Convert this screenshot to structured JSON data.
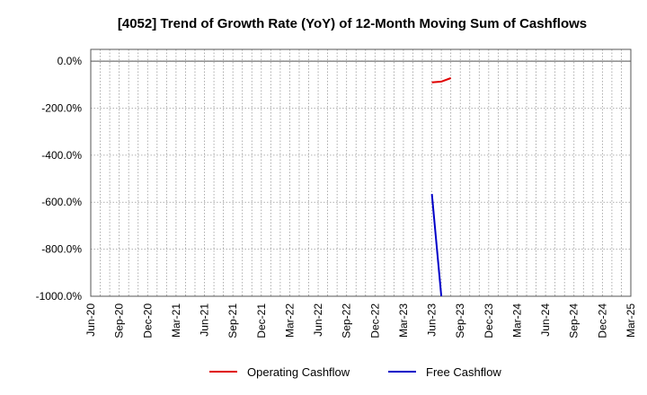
{
  "chart_data": {
    "type": "line",
    "title": "[4052]  Trend of Growth Rate (YoY) of 12-Month Moving Sum of Cashflows",
    "xlabel": "",
    "ylabel": "",
    "ylim": [
      -1000,
      50
    ],
    "y_ticks": [
      0,
      -200,
      -400,
      -600,
      -800,
      -1000
    ],
    "y_tick_labels": [
      "0.0%",
      "-200.0%",
      "-400.0%",
      "-600.0%",
      "-800.0%",
      "-1000.0%"
    ],
    "x_ticks": [
      "Jun-20",
      "Sep-20",
      "Dec-20",
      "Mar-21",
      "Jun-21",
      "Sep-21",
      "Dec-21",
      "Mar-22",
      "Jun-22",
      "Sep-22",
      "Dec-22",
      "Mar-23",
      "Jun-23",
      "Sep-23",
      "Dec-23",
      "Mar-24",
      "Jun-24",
      "Sep-24",
      "Dec-24",
      "Mar-25"
    ],
    "grid": true,
    "legend_position": "bottom",
    "series": [
      {
        "name": "Operating Cashflow",
        "color": "#e00000",
        "points": [
          [
            "Jun-23",
            -90
          ],
          [
            "Jul-23",
            -87
          ],
          [
            "Aug-23",
            -72
          ]
        ]
      },
      {
        "name": "Free Cashflow",
        "color": "#0000c8",
        "points": [
          [
            "Jun-23",
            -565
          ],
          [
            "Jul-23",
            -1000
          ]
        ]
      }
    ]
  }
}
